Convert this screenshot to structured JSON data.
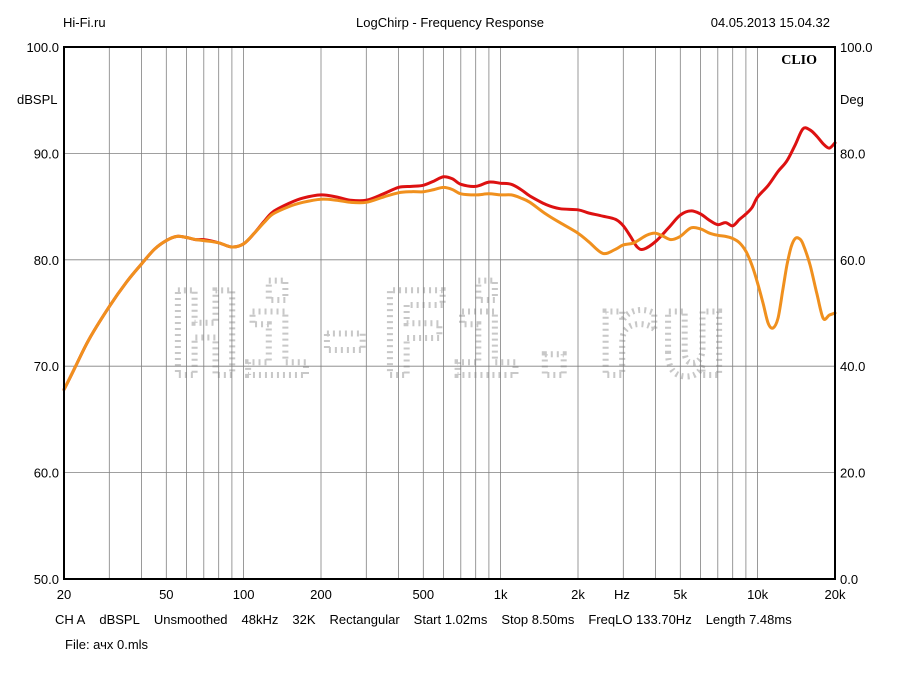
{
  "header": {
    "left": "Hi-Fi.ru",
    "center": "LogChirp - Frequency Response",
    "right": "04.05.2013 15.04.32"
  },
  "footer": {
    "settings": [
      "CH A",
      "dBSPL",
      "Unsmoothed",
      "48kHz",
      "32K",
      "Rectangular",
      "Start 1.02ms",
      "Stop 8.50ms",
      "FreqLO 133.70Hz",
      "Length 7.48ms"
    ],
    "file": "File: ачх 0.mls"
  },
  "watermark": {
    "text": "Hi-Fi.ru"
  },
  "chart_data": {
    "type": "line",
    "brand": "CLIO",
    "x_scale": "log",
    "xlim": [
      20,
      20000
    ],
    "ylim": [
      50,
      100
    ],
    "y2lim": [
      0,
      100
    ],
    "ylabel": "dBSPL",
    "y2label": "Deg",
    "xunit": "Hz",
    "grid": true,
    "x_ticks": [
      {
        "value": 20,
        "label": "20"
      },
      {
        "value": 50,
        "label": "50"
      },
      {
        "value": 100,
        "label": "100"
      },
      {
        "value": 200,
        "label": "200"
      },
      {
        "value": 500,
        "label": "500"
      },
      {
        "value": 1000,
        "label": "1k"
      },
      {
        "value": 2000,
        "label": "2k"
      },
      {
        "value": 5000,
        "label": "5k"
      },
      {
        "value": 10000,
        "label": "10k"
      },
      {
        "value": 20000,
        "label": "20k"
      }
    ],
    "y_ticks": [
      "50.0",
      "60.0",
      "70.0",
      "80.0",
      "90.0",
      "100.0"
    ],
    "y2_ticks": [
      "0.0",
      "20.0",
      "40.0",
      "60.0",
      "80.0",
      "100.0"
    ],
    "colors": {
      "series1": "#dd1111",
      "series2": "#f0901e",
      "grid": "#808080",
      "frame": "#000000"
    },
    "series": [
      {
        "color": "#dd1111",
        "x": [
          20,
          22,
          25,
          30,
          35,
          40,
          45,
          50,
          55,
          60,
          65,
          70,
          80,
          90,
          100,
          110,
          120,
          130,
          150,
          170,
          200,
          230,
          260,
          300,
          350,
          400,
          450,
          500,
          550,
          600,
          650,
          700,
          800,
          900,
          1000,
          1100,
          1200,
          1300,
          1500,
          1700,
          2000,
          2200,
          2500,
          2800,
          3000,
          3200,
          3400,
          3600,
          4000,
          4500,
          5000,
          5500,
          6000,
          6500,
          7000,
          7500,
          8000,
          8500,
          9000,
          9500,
          10000,
          11000,
          12000,
          13000,
          14000,
          15000,
          16000,
          17000,
          18000,
          19000,
          20000
        ],
        "values": [
          67.8,
          69.8,
          72.5,
          75.6,
          77.9,
          79.6,
          81.0,
          81.8,
          82.2,
          82.1,
          81.9,
          81.9,
          81.6,
          81.2,
          81.5,
          82.5,
          83.6,
          84.5,
          85.3,
          85.8,
          86.1,
          85.9,
          85.6,
          85.6,
          86.2,
          86.8,
          86.9,
          87.0,
          87.4,
          87.8,
          87.6,
          87.1,
          86.9,
          87.3,
          87.2,
          87.1,
          86.6,
          86.0,
          85.2,
          84.8,
          84.7,
          84.4,
          84.1,
          83.8,
          83.2,
          82.2,
          81.2,
          81.0,
          81.7,
          83.0,
          84.2,
          84.6,
          84.3,
          83.7,
          83.3,
          83.5,
          83.2,
          83.8,
          84.3,
          84.9,
          85.9,
          87.0,
          88.3,
          89.3,
          90.8,
          92.3,
          92.2,
          91.6,
          90.9,
          90.5,
          91.0
        ]
      },
      {
        "color": "#f0901e",
        "x": [
          20,
          22,
          25,
          30,
          35,
          40,
          45,
          50,
          55,
          60,
          65,
          70,
          80,
          90,
          100,
          110,
          120,
          130,
          150,
          170,
          200,
          230,
          260,
          300,
          350,
          400,
          450,
          500,
          550,
          600,
          650,
          700,
          800,
          900,
          1000,
          1100,
          1200,
          1300,
          1500,
          1700,
          2000,
          2200,
          2500,
          2800,
          3000,
          3300,
          3700,
          4000,
          4300,
          4600,
          5000,
          5500,
          6000,
          6500,
          7000,
          7500,
          8000,
          8500,
          9000,
          9500,
          10000,
          10500,
          11000,
          11500,
          12000,
          12500,
          13000,
          13500,
          14000,
          14500,
          15000,
          16000,
          17000,
          18000,
          19000,
          20000
        ],
        "values": [
          67.8,
          69.8,
          72.5,
          75.6,
          77.9,
          79.6,
          81.0,
          81.8,
          82.2,
          82.1,
          81.9,
          81.8,
          81.6,
          81.2,
          81.5,
          82.5,
          83.5,
          84.3,
          85.0,
          85.4,
          85.7,
          85.6,
          85.4,
          85.4,
          85.9,
          86.3,
          86.4,
          86.4,
          86.6,
          86.8,
          86.6,
          86.2,
          86.1,
          86.2,
          86.1,
          86.1,
          85.8,
          85.4,
          84.3,
          83.5,
          82.5,
          81.7,
          80.6,
          81.0,
          81.4,
          81.6,
          82.3,
          82.5,
          82.2,
          81.9,
          82.2,
          83.0,
          82.9,
          82.5,
          82.3,
          82.2,
          82.0,
          81.6,
          80.8,
          79.5,
          77.8,
          75.9,
          74.0,
          73.6,
          74.5,
          77.0,
          79.5,
          81.2,
          82.0,
          82.0,
          81.5,
          79.5,
          76.8,
          74.5,
          74.8,
          75.0
        ]
      }
    ]
  }
}
